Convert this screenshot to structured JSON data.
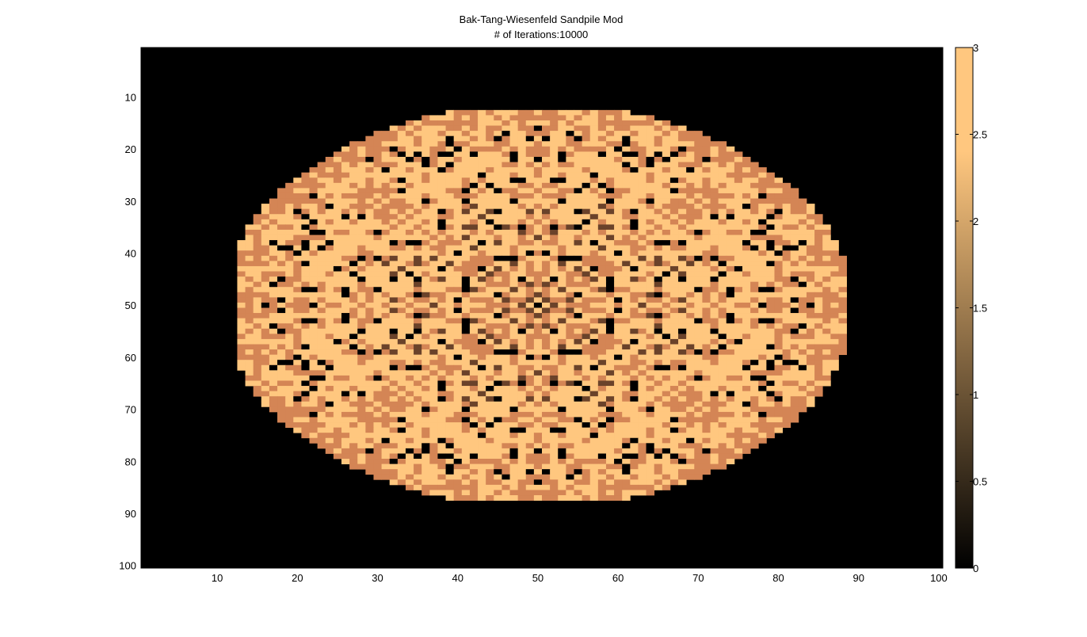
{
  "chart_data": {
    "type": "heatmap",
    "title": "Bak-Tang-Wiesenfeld Sandpile Mod",
    "subtitle": "# of Iterations:10000",
    "xlabel": "",
    "ylabel": "",
    "grid": false,
    "legend": "colorbar-right",
    "x_range": [
      0.5,
      100.5
    ],
    "y_range": [
      0.5,
      100.5
    ],
    "y_reversed": true,
    "x_ticks": [
      10,
      20,
      30,
      40,
      50,
      60,
      70,
      80,
      90,
      100
    ],
    "y_ticks": [
      10,
      20,
      30,
      40,
      50,
      60,
      70,
      80,
      90,
      100
    ],
    "colorbar": {
      "range": [
        0,
        3
      ],
      "ticks": [
        0,
        0.5,
        1,
        1.5,
        2,
        2.5,
        3
      ],
      "tick_labels": [
        "0",
        "0.5",
        "1",
        "1.5",
        "2",
        "2.5",
        "3"
      ],
      "colormap": "copper",
      "color_low": "#000000",
      "color_high": "#ffc77f"
    },
    "values_by_level": {
      "3": "majority of cells inside the pile",
      "2": "band along the pile edge and star-shaped arms",
      "1": "scattered cells, mostly near the center",
      "0": "all cells outside the pile and scattered isolated holes inside"
    },
    "pile": {
      "center": [
        50,
        50
      ],
      "x_extent": [
        13,
        88
      ],
      "y_extent": [
        13,
        87
      ]
    }
  }
}
